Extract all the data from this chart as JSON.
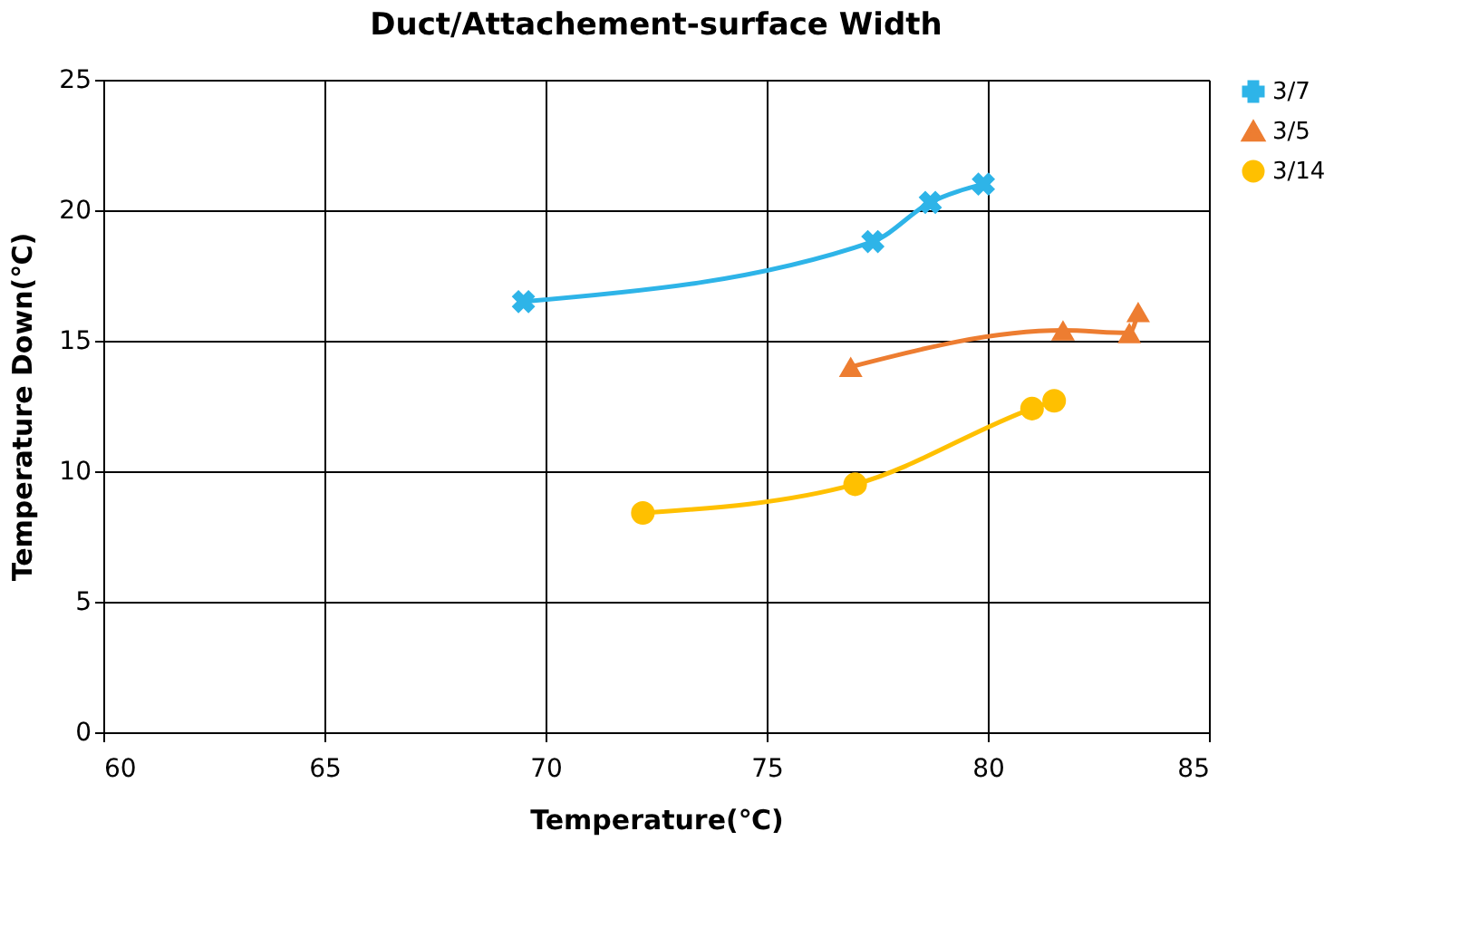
{
  "chart_data": {
    "type": "line",
    "title": "Duct/Attachement-surface Width",
    "xlabel": "Temperature(℃)",
    "ylabel": "Temperature Down(℃)",
    "xlim": [
      60,
      85
    ],
    "xticks": [
      60,
      65,
      70,
      75,
      80,
      85
    ],
    "ylim": [
      0,
      25
    ],
    "yticks": [
      0,
      5,
      10,
      15,
      20,
      25
    ],
    "grid": true,
    "legend": "right",
    "line_style": "solid",
    "series": [
      {
        "name": "3/7",
        "color": "#2eb4e8",
        "marker": "cross",
        "x": [
          69.5,
          77.4,
          78.7,
          79.9
        ],
        "values": [
          16.5,
          18.8,
          20.3,
          21.0
        ]
      },
      {
        "name": "3/5",
        "color": "#ed7d31",
        "marker": "triangle",
        "x": [
          76.9,
          81.7,
          83.2,
          83.4
        ],
        "values": [
          14.0,
          15.4,
          15.3,
          16.1
        ]
      },
      {
        "name": "3/14",
        "color": "#ffc000",
        "marker": "circle",
        "x": [
          72.2,
          77.0,
          81.0,
          81.5
        ],
        "values": [
          8.4,
          9.5,
          12.4,
          12.7
        ]
      }
    ]
  }
}
